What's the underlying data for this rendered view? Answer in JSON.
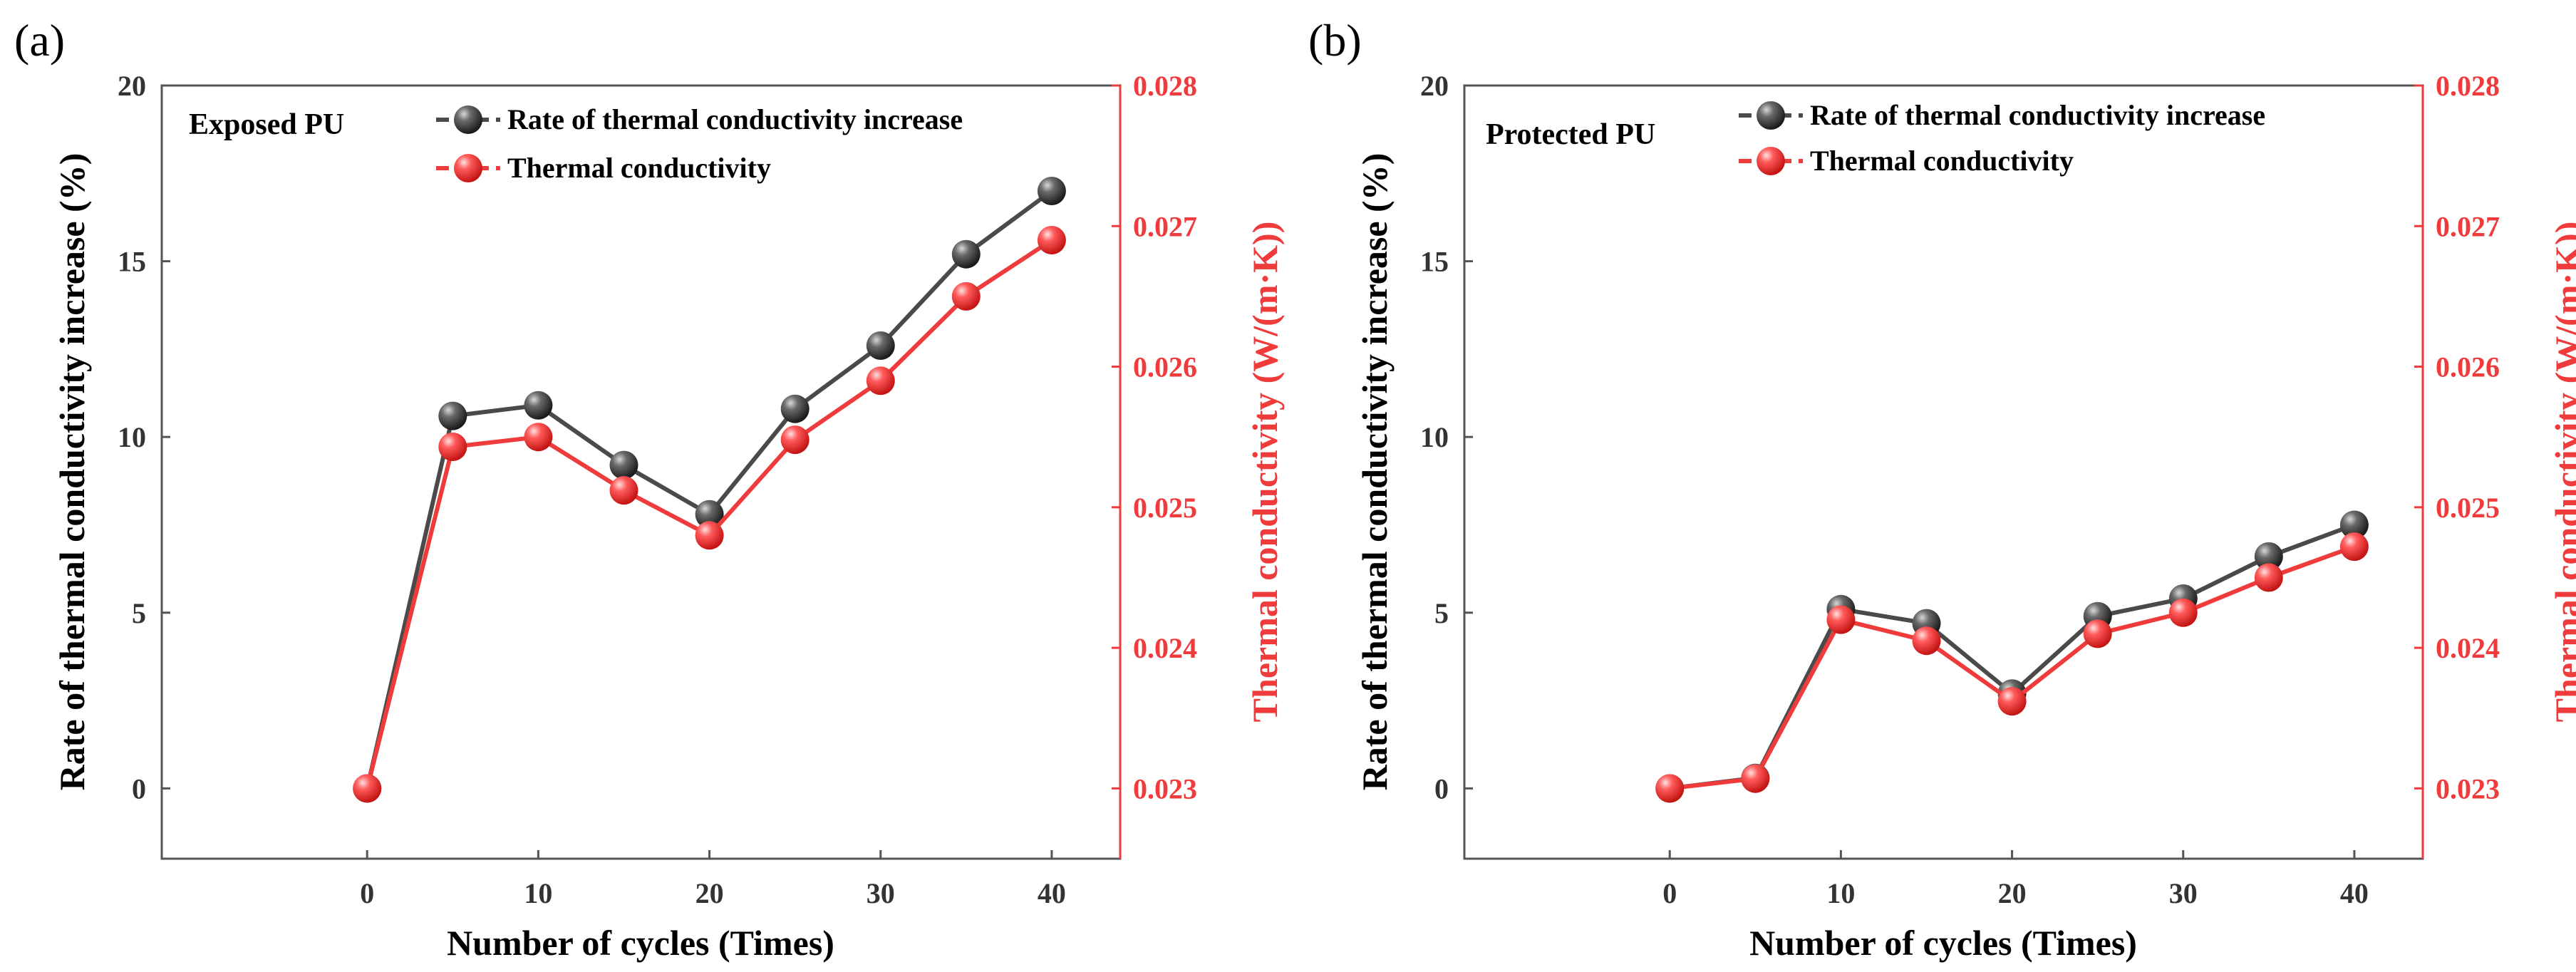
{
  "chart_data": [
    {
      "type": "line",
      "panel_label": "(a)",
      "annotation": "Exposed PU",
      "xlabel": "Number of cycles (Times)",
      "ylabel": "Rate of thermal conductivity increase (%)",
      "y2label": "Thermal conductivity (W/(m·K))",
      "xlim": [
        -12,
        44
      ],
      "ylim": [
        -2,
        20
      ],
      "y2lim": [
        0.0225,
        0.028
      ],
      "xticks": [
        0,
        10,
        20,
        30,
        40
      ],
      "yticks": [
        0,
        5,
        10,
        15,
        20
      ],
      "y2ticks": [
        0.023,
        0.024,
        0.025,
        0.026,
        0.027,
        0.028
      ],
      "y2tick_labels": [
        "0.023",
        "0.024",
        "0.025",
        "0.026",
        "0.027",
        "0.028"
      ],
      "legend_position": "top-right",
      "x": [
        0,
        5,
        10,
        15,
        20,
        25,
        30,
        35,
        40
      ],
      "series": [
        {
          "name": "Rate of thermal conductivity increase",
          "axis": "left",
          "color": "#4a4a4a",
          "values": [
            0,
            10.6,
            10.9,
            9.2,
            7.8,
            10.8,
            12.6,
            15.2,
            17.0
          ]
        },
        {
          "name": "Thermal conductivity",
          "axis": "right",
          "color": "#ef3b3b",
          "values": [
            0.023,
            0.02543,
            0.0255,
            0.02512,
            0.0248,
            0.02548,
            0.0259,
            0.0265,
            0.0269
          ]
        }
      ]
    },
    {
      "type": "line",
      "panel_label": "(b)",
      "annotation": "Protected PU",
      "xlabel": "Number of cycles (Times)",
      "ylabel": "Rate of thermal conductivity increase (%)",
      "y2label": "Thermal conductivity (W/(m·K))",
      "xlim": [
        -12,
        44
      ],
      "ylim": [
        -2,
        20
      ],
      "y2lim": [
        0.0225,
        0.028
      ],
      "xticks": [
        0,
        10,
        20,
        30,
        40
      ],
      "yticks": [
        0,
        5,
        10,
        15,
        20
      ],
      "y2ticks": [
        0.023,
        0.024,
        0.025,
        0.026,
        0.027,
        0.028
      ],
      "y2tick_labels": [
        "0.023",
        "0.024",
        "0.025",
        "0.026",
        "0.027",
        "0.028"
      ],
      "legend_position": "top-right",
      "x": [
        0,
        5,
        10,
        15,
        20,
        25,
        30,
        35,
        40
      ],
      "series": [
        {
          "name": "Rate of thermal conductivity increase",
          "axis": "left",
          "color": "#4a4a4a",
          "values": [
            0,
            0.3,
            5.1,
            4.7,
            2.7,
            4.9,
            5.4,
            6.6,
            7.5
          ]
        },
        {
          "name": "Thermal conductivity",
          "axis": "right",
          "color": "#ef3b3b",
          "values": [
            0.023,
            0.02307,
            0.0242,
            0.02405,
            0.02362,
            0.0241,
            0.02425,
            0.0245,
            0.02472
          ]
        }
      ]
    }
  ]
}
